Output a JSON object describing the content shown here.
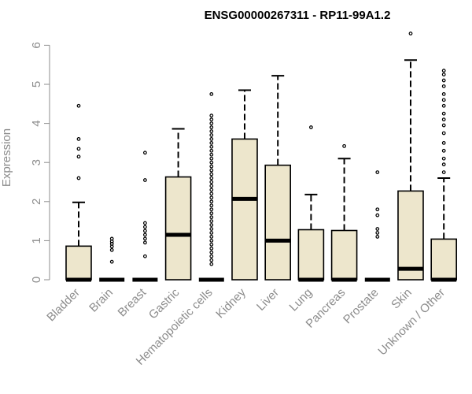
{
  "chart_data": {
    "type": "boxplot",
    "title": "ENSG00000267311 - RP11-99A1.2",
    "ylabel": "Expression",
    "xlabel": "",
    "ylim": [
      0,
      6.3
    ],
    "yticks": [
      0,
      1,
      2,
      3,
      4,
      5,
      6
    ],
    "grid": false,
    "colors": {
      "box_fill": "#ede6cc",
      "stroke": "#000000",
      "axis_text": "#8c8c8c"
    },
    "categories": [
      "Bladder",
      "Brain",
      "Breast",
      "Gastric",
      "Hematopoietic cells",
      "Kidney",
      "Liver",
      "Lung",
      "Pancreas",
      "Prostate",
      "Skin",
      "Unknown / Other"
    ],
    "boxes": [
      {
        "category": "Bladder",
        "min": 0,
        "q1": 0,
        "median": 0,
        "q3": 0.86,
        "max": 1.98,
        "outliers": [
          2.6,
          3.15,
          3.35,
          3.6,
          4.45
        ]
      },
      {
        "category": "Brain",
        "min": 0,
        "q1": 0,
        "median": 0,
        "q3": 0,
        "max": 0,
        "outliers": [
          0.46,
          0.76,
          0.85,
          0.92,
          0.98,
          1.05
        ]
      },
      {
        "category": "Breast",
        "min": 0,
        "q1": 0,
        "median": 0,
        "q3": 0,
        "max": 0,
        "outliers": [
          0.6,
          0.95,
          1.05,
          1.15,
          1.25,
          1.35,
          1.45,
          2.55,
          3.25
        ]
      },
      {
        "category": "Gastric",
        "min": 0,
        "q1": 0,
        "median": 1.15,
        "q3": 2.63,
        "max": 3.86,
        "outliers": []
      },
      {
        "category": "Hematopoietic cells",
        "min": 0,
        "q1": 0,
        "median": 0,
        "q3": 0,
        "max": 0,
        "outliers": [
          0.4,
          0.5,
          0.6,
          0.7,
          0.8,
          0.9,
          1.0,
          1.1,
          1.2,
          1.3,
          1.4,
          1.5,
          1.6,
          1.7,
          1.8,
          1.9,
          2.0,
          2.1,
          2.2,
          2.3,
          2.4,
          2.5,
          2.6,
          2.7,
          2.8,
          2.9,
          3.0,
          3.1,
          3.2,
          3.3,
          3.4,
          3.5,
          3.6,
          3.7,
          3.8,
          3.9,
          4.0,
          4.1,
          4.2,
          4.75
        ]
      },
      {
        "category": "Kidney",
        "min": 0,
        "q1": 0,
        "median": 2.07,
        "q3": 3.6,
        "max": 4.85,
        "outliers": []
      },
      {
        "category": "Liver",
        "min": 0,
        "q1": 0,
        "median": 1.0,
        "q3": 2.93,
        "max": 5.22,
        "outliers": []
      },
      {
        "category": "Lung",
        "min": 0,
        "q1": 0,
        "median": 0,
        "q3": 1.28,
        "max": 2.18,
        "outliers": [
          3.9
        ]
      },
      {
        "category": "Pancreas",
        "min": 0,
        "q1": 0,
        "median": 0,
        "q3": 1.26,
        "max": 3.1,
        "outliers": [
          3.42
        ]
      },
      {
        "category": "Prostate",
        "min": 0,
        "q1": 0,
        "median": 0,
        "q3": 0,
        "max": 0,
        "outliers": [
          1.1,
          1.2,
          1.3,
          1.65,
          1.8,
          2.75
        ]
      },
      {
        "category": "Skin",
        "min": 0,
        "q1": 0,
        "median": 0.28,
        "q3": 2.27,
        "max": 5.62,
        "outliers": [
          6.3
        ]
      },
      {
        "category": "Unknown / Other",
        "min": 0,
        "q1": 0,
        "median": 0,
        "q3": 1.04,
        "max": 2.6,
        "outliers": [
          2.75,
          2.95,
          3.1,
          3.3,
          3.5,
          3.75,
          3.95,
          4.1,
          4.25,
          4.45,
          4.6,
          4.75,
          4.95,
          5.1,
          5.25,
          5.35
        ]
      }
    ]
  }
}
